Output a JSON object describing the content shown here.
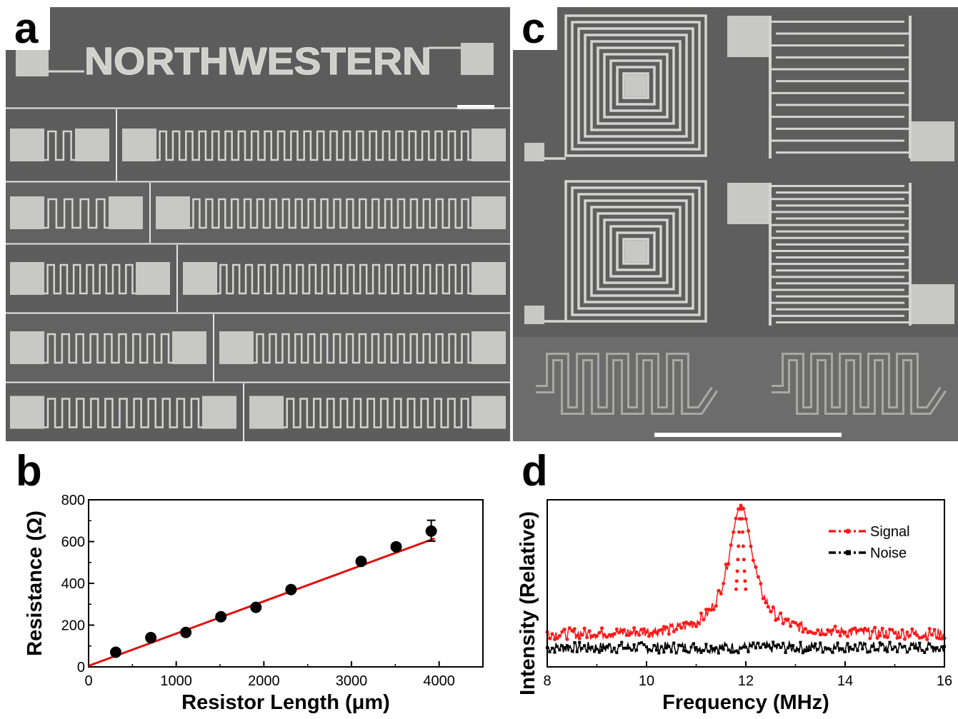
{
  "figure": {
    "panels": {
      "a": {
        "letter": "a",
        "pattern_text": "NORTHWESTERN"
      },
      "b": {
        "letter": "b"
      },
      "c": {
        "letter": "c"
      },
      "d": {
        "letter": "d"
      }
    },
    "colors": {
      "sem_background": "#5f5f5f",
      "sem_panel_alt": "#6a6a6a",
      "metal": "#d4d4d0",
      "pad": "#c8c8c4",
      "scale_bar": "#ffffff",
      "fit_line": "#e01010",
      "points": "#000000",
      "signal": "#ff1a1a",
      "noise": "#000000"
    }
  },
  "chart_data": [
    {
      "panel": "b",
      "type": "scatter",
      "xlabel": "Resistor Length (μm)",
      "ylabel": "Resistance (Ω)",
      "xlim": [
        0,
        4500
      ],
      "ylim": [
        0,
        800
      ],
      "xticks": [
        0,
        1000,
        2000,
        3000,
        4000
      ],
      "yticks": [
        0,
        200,
        400,
        600,
        800
      ],
      "points": [
        {
          "x": 310,
          "y": 70
        },
        {
          "x": 710,
          "y": 140
        },
        {
          "x": 1110,
          "y": 165
        },
        {
          "x": 1510,
          "y": 240
        },
        {
          "x": 1910,
          "y": 285
        },
        {
          "x": 2310,
          "y": 370
        },
        {
          "x": 3110,
          "y": 505
        },
        {
          "x": 3510,
          "y": 575
        },
        {
          "x": 3910,
          "y": 650
        }
      ],
      "error_bar": {
        "x": 3910,
        "low": 602,
        "high": 702
      },
      "fit_line": {
        "x": [
          0,
          3950
        ],
        "y": [
          5,
          615
        ]
      },
      "grid": false
    },
    {
      "panel": "d",
      "type": "line",
      "xlabel": "Frequency (MHz)",
      "ylabel": "Intensity (Relative)",
      "xlim": [
        8,
        16
      ],
      "xticks": [
        8,
        10,
        12,
        14,
        16
      ],
      "yticks_visible": false,
      "legend_position": "top-right",
      "series": [
        {
          "name": "Signal",
          "color": "#ff1a1a",
          "baseline": 0.2,
          "peak_x": 11.9,
          "peak_y": 1.0,
          "half_width": 0.3
        },
        {
          "name": "Noise",
          "color": "#000000",
          "baseline": 0.12
        }
      ],
      "grid": false
    }
  ]
}
